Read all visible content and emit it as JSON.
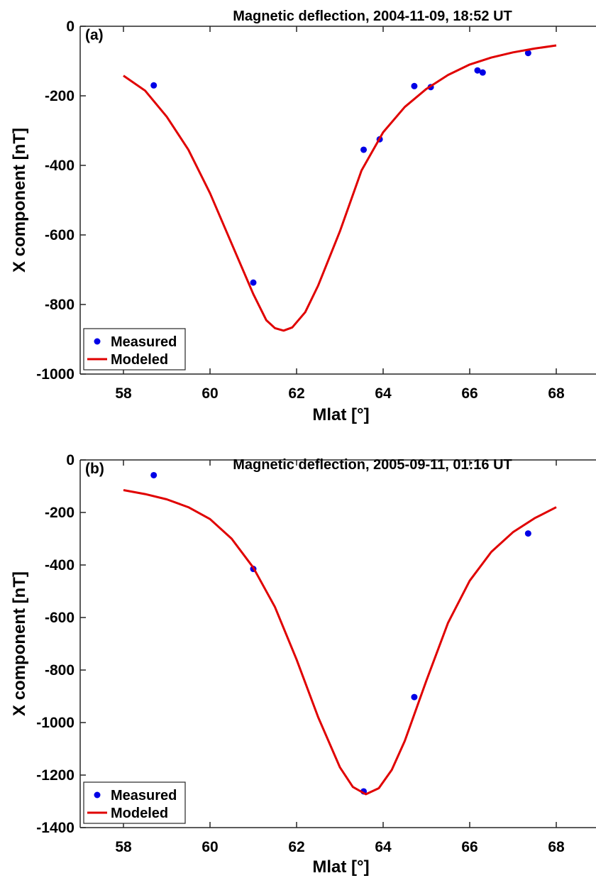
{
  "chart_data": [
    {
      "type": "scatter",
      "panel_label": "(a)",
      "title": "Magnetic deflection, 2004-11-09, 18:52 UT",
      "xlabel": "Mlat [°]",
      "ylabel": "X component [nT]",
      "xlim": [
        57,
        69
      ],
      "ylim": [
        -1000,
        0
      ],
      "xticks": [
        58,
        60,
        62,
        64,
        66,
        68
      ],
      "yticks": [
        0,
        -200,
        -400,
        -600,
        -800,
        -1000
      ],
      "grid": false,
      "legend_position": "bottom-left",
      "series": [
        {
          "name": "Measured",
          "kind": "points",
          "color": "#0000e6",
          "x": [
            58.7,
            61.0,
            63.55,
            63.92,
            64.72,
            65.1,
            66.18,
            66.3,
            67.35
          ],
          "y": [
            -170,
            -737,
            -355,
            -325,
            -172,
            -175,
            -127,
            -133,
            -77
          ]
        },
        {
          "name": "Modeled",
          "kind": "line",
          "color": "#e00000",
          "x": [
            58.0,
            58.5,
            59.0,
            59.5,
            60.0,
            60.5,
            61.0,
            61.3,
            61.5,
            61.7,
            61.9,
            62.2,
            62.5,
            63.0,
            63.5,
            64.0,
            64.5,
            65.0,
            65.5,
            66.0,
            66.5,
            67.0,
            67.5,
            68.0
          ],
          "y": [
            -142,
            -185,
            -260,
            -355,
            -480,
            -625,
            -770,
            -845,
            -868,
            -875,
            -866,
            -822,
            -745,
            -590,
            -415,
            -305,
            -232,
            -180,
            -140,
            -110,
            -90,
            -75,
            -64,
            -55
          ]
        }
      ]
    },
    {
      "type": "scatter",
      "panel_label": "(b)",
      "title": "Magnetic deflection, 2005-09-11, 01:16 UT",
      "xlabel": "Mlat [°]",
      "ylabel": "X component [nT]",
      "xlim": [
        57,
        69
      ],
      "ylim": [
        -1400,
        0
      ],
      "xticks": [
        58,
        60,
        62,
        64,
        66,
        68
      ],
      "yticks": [
        0,
        -200,
        -400,
        -600,
        -800,
        -1000,
        -1200,
        -1400
      ],
      "grid": false,
      "legend_position": "bottom-left",
      "series": [
        {
          "name": "Measured",
          "kind": "points",
          "color": "#0000e6",
          "x": [
            58.7,
            61.0,
            63.55,
            64.72,
            67.35
          ],
          "y": [
            -58,
            -415,
            -1262,
            -903,
            -280
          ]
        },
        {
          "name": "Modeled",
          "kind": "line",
          "color": "#e00000",
          "x": [
            58.0,
            58.5,
            59.0,
            59.5,
            60.0,
            60.5,
            61.0,
            61.5,
            62.0,
            62.5,
            63.0,
            63.3,
            63.6,
            63.9,
            64.2,
            64.5,
            65.0,
            65.5,
            66.0,
            66.5,
            67.0,
            67.5,
            68.0
          ],
          "y": [
            -115,
            -130,
            -150,
            -180,
            -225,
            -300,
            -410,
            -560,
            -760,
            -980,
            -1170,
            -1245,
            -1273,
            -1250,
            -1180,
            -1070,
            -840,
            -620,
            -460,
            -350,
            -275,
            -222,
            -180
          ]
        }
      ]
    }
  ]
}
